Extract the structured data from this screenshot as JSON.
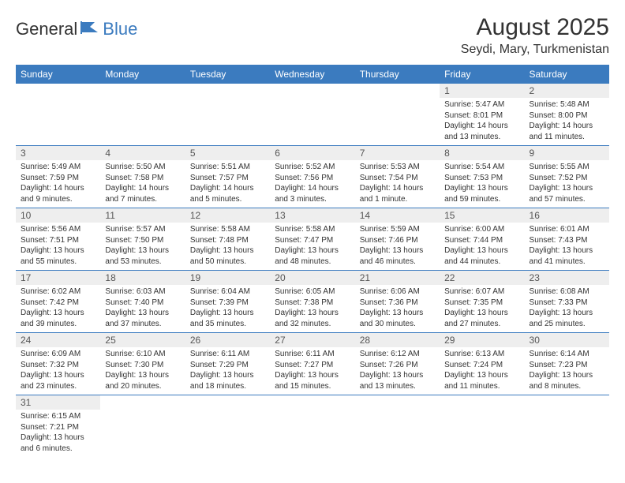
{
  "logo": {
    "part1": "General",
    "part2": "Blue"
  },
  "title": "August 2025",
  "location": "Seydi, Mary, Turkmenistan",
  "colors": {
    "header_bg": "#3b7bbf",
    "header_text": "#ffffff",
    "daynum_bg": "#eeeeee",
    "border": "#3b7bbf",
    "logo_accent": "#3b7bbf"
  },
  "weekdays": [
    "Sunday",
    "Monday",
    "Tuesday",
    "Wednesday",
    "Thursday",
    "Friday",
    "Saturday"
  ],
  "weeks": [
    [
      null,
      null,
      null,
      null,
      null,
      {
        "n": "1",
        "sunrise": "5:47 AM",
        "sunset": "8:01 PM",
        "daylight": "14 hours and 13 minutes."
      },
      {
        "n": "2",
        "sunrise": "5:48 AM",
        "sunset": "8:00 PM",
        "daylight": "14 hours and 11 minutes."
      }
    ],
    [
      {
        "n": "3",
        "sunrise": "5:49 AM",
        "sunset": "7:59 PM",
        "daylight": "14 hours and 9 minutes."
      },
      {
        "n": "4",
        "sunrise": "5:50 AM",
        "sunset": "7:58 PM",
        "daylight": "14 hours and 7 minutes."
      },
      {
        "n": "5",
        "sunrise": "5:51 AM",
        "sunset": "7:57 PM",
        "daylight": "14 hours and 5 minutes."
      },
      {
        "n": "6",
        "sunrise": "5:52 AM",
        "sunset": "7:56 PM",
        "daylight": "14 hours and 3 minutes."
      },
      {
        "n": "7",
        "sunrise": "5:53 AM",
        "sunset": "7:54 PM",
        "daylight": "14 hours and 1 minute."
      },
      {
        "n": "8",
        "sunrise": "5:54 AM",
        "sunset": "7:53 PM",
        "daylight": "13 hours and 59 minutes."
      },
      {
        "n": "9",
        "sunrise": "5:55 AM",
        "sunset": "7:52 PM",
        "daylight": "13 hours and 57 minutes."
      }
    ],
    [
      {
        "n": "10",
        "sunrise": "5:56 AM",
        "sunset": "7:51 PM",
        "daylight": "13 hours and 55 minutes."
      },
      {
        "n": "11",
        "sunrise": "5:57 AM",
        "sunset": "7:50 PM",
        "daylight": "13 hours and 53 minutes."
      },
      {
        "n": "12",
        "sunrise": "5:58 AM",
        "sunset": "7:48 PM",
        "daylight": "13 hours and 50 minutes."
      },
      {
        "n": "13",
        "sunrise": "5:58 AM",
        "sunset": "7:47 PM",
        "daylight": "13 hours and 48 minutes."
      },
      {
        "n": "14",
        "sunrise": "5:59 AM",
        "sunset": "7:46 PM",
        "daylight": "13 hours and 46 minutes."
      },
      {
        "n": "15",
        "sunrise": "6:00 AM",
        "sunset": "7:44 PM",
        "daylight": "13 hours and 44 minutes."
      },
      {
        "n": "16",
        "sunrise": "6:01 AM",
        "sunset": "7:43 PM",
        "daylight": "13 hours and 41 minutes."
      }
    ],
    [
      {
        "n": "17",
        "sunrise": "6:02 AM",
        "sunset": "7:42 PM",
        "daylight": "13 hours and 39 minutes."
      },
      {
        "n": "18",
        "sunrise": "6:03 AM",
        "sunset": "7:40 PM",
        "daylight": "13 hours and 37 minutes."
      },
      {
        "n": "19",
        "sunrise": "6:04 AM",
        "sunset": "7:39 PM",
        "daylight": "13 hours and 35 minutes."
      },
      {
        "n": "20",
        "sunrise": "6:05 AM",
        "sunset": "7:38 PM",
        "daylight": "13 hours and 32 minutes."
      },
      {
        "n": "21",
        "sunrise": "6:06 AM",
        "sunset": "7:36 PM",
        "daylight": "13 hours and 30 minutes."
      },
      {
        "n": "22",
        "sunrise": "6:07 AM",
        "sunset": "7:35 PM",
        "daylight": "13 hours and 27 minutes."
      },
      {
        "n": "23",
        "sunrise": "6:08 AM",
        "sunset": "7:33 PM",
        "daylight": "13 hours and 25 minutes."
      }
    ],
    [
      {
        "n": "24",
        "sunrise": "6:09 AM",
        "sunset": "7:32 PM",
        "daylight": "13 hours and 23 minutes."
      },
      {
        "n": "25",
        "sunrise": "6:10 AM",
        "sunset": "7:30 PM",
        "daylight": "13 hours and 20 minutes."
      },
      {
        "n": "26",
        "sunrise": "6:11 AM",
        "sunset": "7:29 PM",
        "daylight": "13 hours and 18 minutes."
      },
      {
        "n": "27",
        "sunrise": "6:11 AM",
        "sunset": "7:27 PM",
        "daylight": "13 hours and 15 minutes."
      },
      {
        "n": "28",
        "sunrise": "6:12 AM",
        "sunset": "7:26 PM",
        "daylight": "13 hours and 13 minutes."
      },
      {
        "n": "29",
        "sunrise": "6:13 AM",
        "sunset": "7:24 PM",
        "daylight": "13 hours and 11 minutes."
      },
      {
        "n": "30",
        "sunrise": "6:14 AM",
        "sunset": "7:23 PM",
        "daylight": "13 hours and 8 minutes."
      }
    ],
    [
      {
        "n": "31",
        "sunrise": "6:15 AM",
        "sunset": "7:21 PM",
        "daylight": "13 hours and 6 minutes."
      },
      null,
      null,
      null,
      null,
      null,
      null
    ]
  ],
  "labels": {
    "sunrise": "Sunrise: ",
    "sunset": "Sunset: ",
    "daylight": "Daylight: "
  }
}
